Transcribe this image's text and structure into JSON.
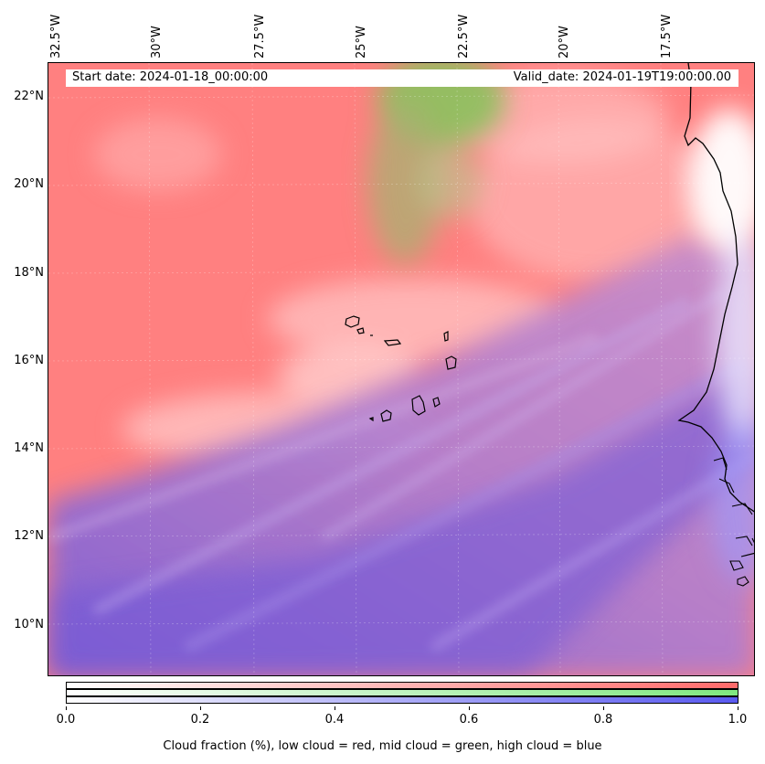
{
  "map": {
    "lon_labels": [
      "32.5°W",
      "30°W",
      "27.5°W",
      "25°W",
      "22.5°W",
      "20°W",
      "17.5°W"
    ],
    "lat_labels": [
      "22°N",
      "20°N",
      "18°N",
      "16°N",
      "14°N",
      "12°N",
      "10°N"
    ],
    "start_date": "Start date: 2024-01-18_00:00:00",
    "valid_date": "Valid_date: 2024-01-19T19:00:00.00",
    "layers": {
      "low_cloud": "red",
      "mid_cloud": "green",
      "high_cloud": "blue"
    },
    "colors": {
      "low": "#ff7f7f",
      "mid": "#7fd87f",
      "high": "#7f7fff",
      "land": "#ffffff",
      "coast": "#000000"
    }
  },
  "colorbar": {
    "ticks": [
      "0.0",
      "0.2",
      "0.4",
      "0.6",
      "0.8",
      "1.0"
    ],
    "range": [
      0.0,
      1.0
    ],
    "caption": "Cloud fraction (%), low cloud = red, mid cloud = green, high cloud = blue"
  }
}
